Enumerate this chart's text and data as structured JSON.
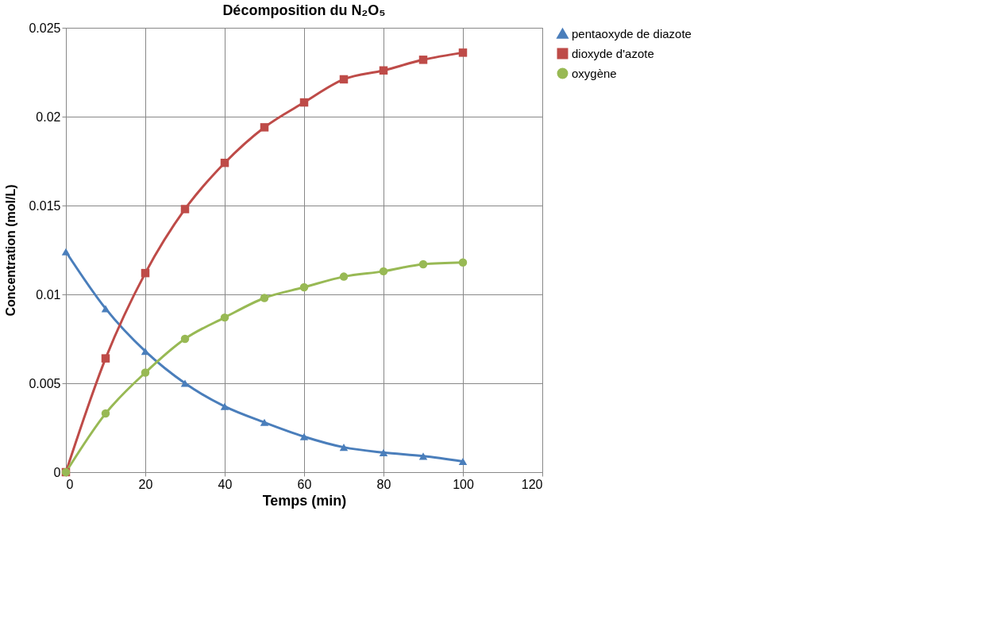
{
  "chart_data": {
    "type": "line",
    "title": "Décomposition du N₂O₅",
    "xlabel": "Temps (min)",
    "ylabel": "Concentration (mol/L)",
    "x": [
      0,
      10,
      20,
      30,
      40,
      50,
      60,
      70,
      80,
      90,
      100
    ],
    "series": [
      {
        "name": "pentaoxyde de diazote",
        "color": "#4a7ebb",
        "marker": "triangle",
        "values": [
          0.0124,
          0.0092,
          0.0068,
          0.005,
          0.0037,
          0.0028,
          0.002,
          0.0014,
          0.0011,
          0.0009,
          0.0006
        ]
      },
      {
        "name": "dioxyde d'azote",
        "color": "#be4b48",
        "marker": "square",
        "values": [
          0,
          0.0064,
          0.0112,
          0.0148,
          0.0174,
          0.0194,
          0.0208,
          0.0221,
          0.0226,
          0.0232,
          0.0236
        ]
      },
      {
        "name": "oxygène",
        "color": "#98b954",
        "marker": "circle",
        "values": [
          0,
          0.0033,
          0.0056,
          0.0075,
          0.0087,
          0.0098,
          0.0104,
          0.011,
          0.0113,
          0.0117,
          0.0118
        ]
      }
    ],
    "xlim": [
      0,
      120
    ],
    "xticks": [
      0,
      20,
      40,
      60,
      80,
      100,
      120
    ],
    "ylim": [
      0,
      0.025
    ],
    "yticks": [
      0,
      0.005,
      0.01,
      0.015,
      0.02,
      0.025
    ],
    "grid": true,
    "legend": "right",
    "line_style": "solid"
  }
}
